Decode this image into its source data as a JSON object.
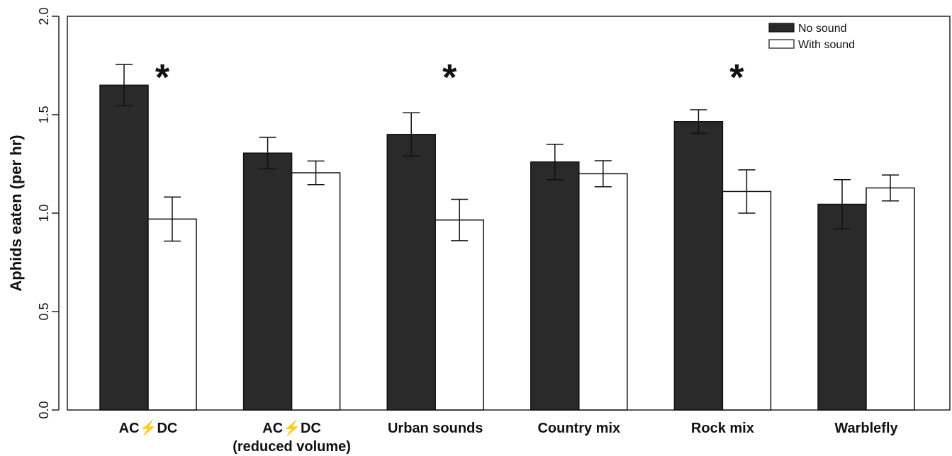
{
  "chart_data": {
    "type": "bar",
    "title": "",
    "xlabel": "",
    "ylabel": "Aphids eaten (per hr)",
    "ylim": [
      0,
      2.0
    ],
    "yticks": [
      "0.0",
      "0.5",
      "1.0",
      "1.5",
      "2.0"
    ],
    "categories": [
      [
        "AC⚡DC"
      ],
      [
        "AC⚡DC",
        "(reduced volume)"
      ],
      [
        "Urban sounds"
      ],
      [
        "Country mix"
      ],
      [
        "Rock mix"
      ],
      [
        "Warblefly"
      ]
    ],
    "series": [
      {
        "name": "No sound",
        "color": "#2a2a2a",
        "values": [
          1.65,
          1.305,
          1.4,
          1.26,
          1.465,
          1.045
        ],
        "error": [
          0.105,
          0.08,
          0.11,
          0.09,
          0.06,
          0.125
        ]
      },
      {
        "name": "With sound",
        "color": "#ffffff",
        "values": [
          0.97,
          1.205,
          0.965,
          1.2,
          1.11,
          1.128
        ],
        "error": [
          0.112,
          0.06,
          0.105,
          0.066,
          0.11,
          0.066
        ]
      }
    ],
    "significance": [
      "*",
      "",
      "*",
      "",
      "*",
      ""
    ],
    "legend": {
      "placement": "top-right"
    },
    "grid": false
  }
}
